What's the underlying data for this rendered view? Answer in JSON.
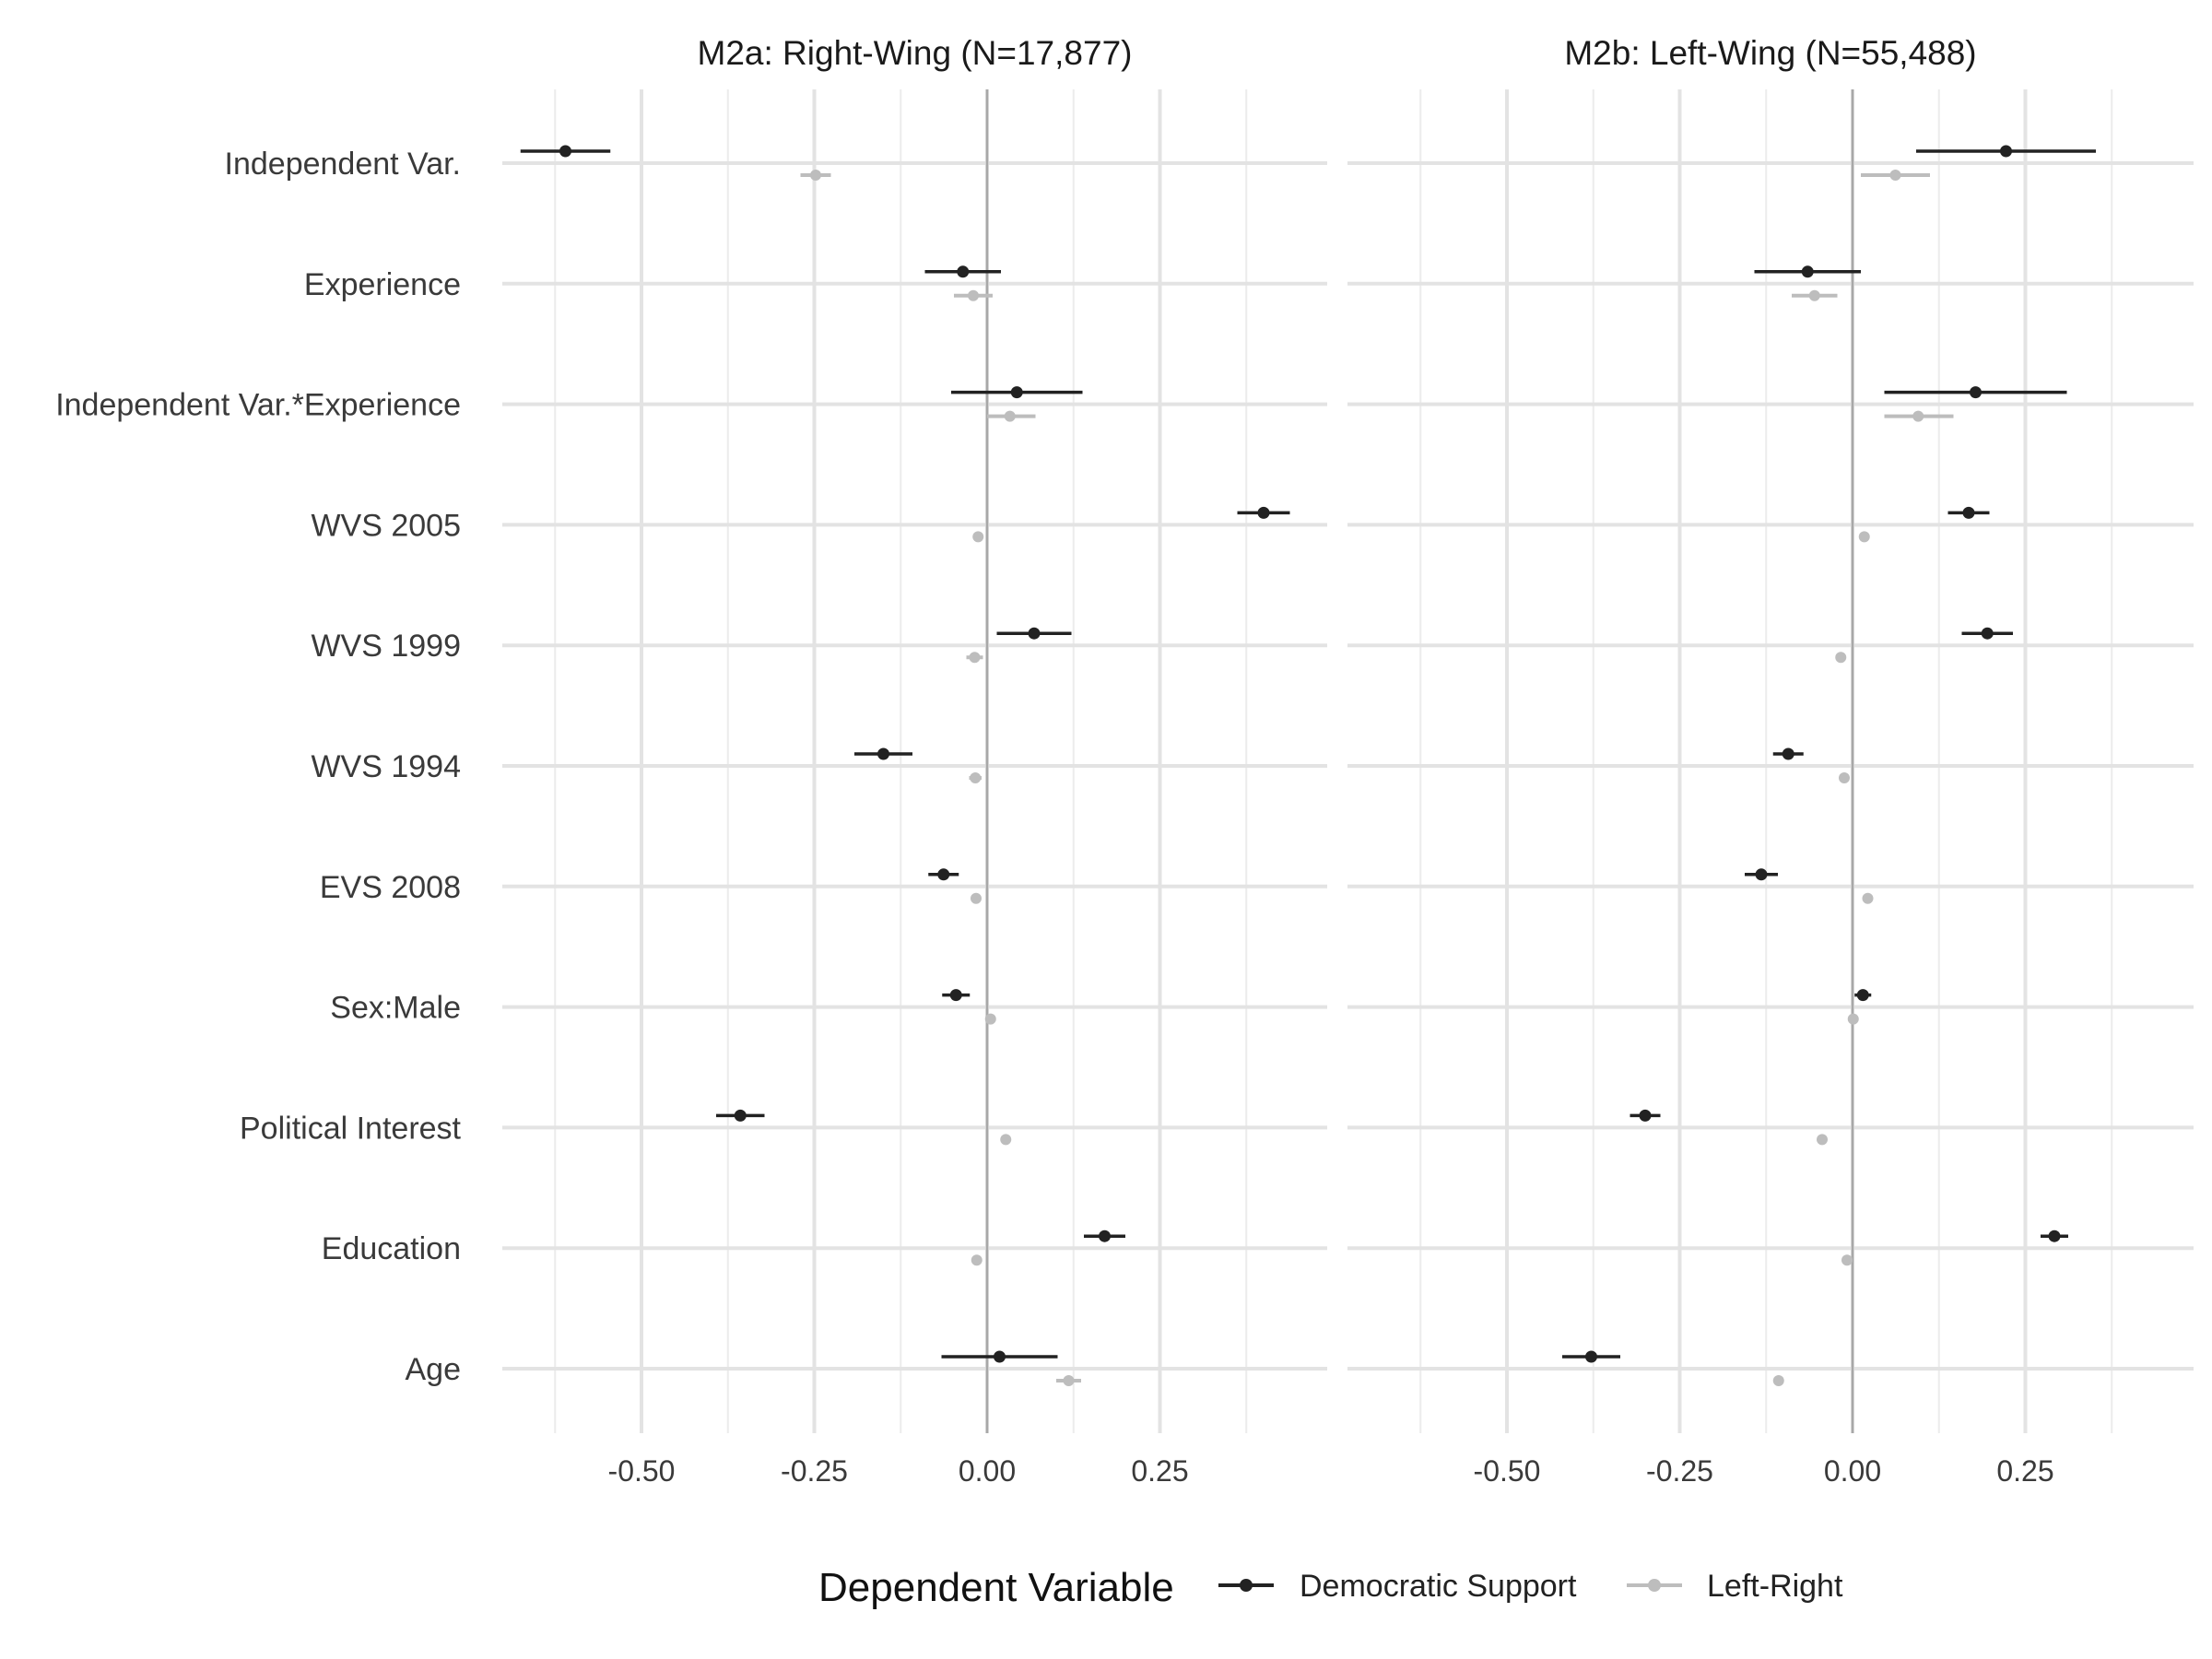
{
  "chart_data": {
    "type": "scatter",
    "subtype": "coefficient-plot",
    "terms": [
      "Independent Var.",
      "Experience",
      "Independent Var.*Experience",
      "WVS 2005",
      "WVS 1999",
      "WVS 1994",
      "EVS 2008",
      "Sex:Male",
      "Political Interest",
      "Education",
      "Age"
    ],
    "x_ticks": [
      -0.5,
      -0.25,
      0.0,
      0.25
    ],
    "x_tick_labels": [
      "-0.50",
      "-0.25",
      "0.00",
      "0.25"
    ],
    "xlim": [
      -0.73,
      0.48
    ],
    "grid": true,
    "reference_line": 0,
    "legend": {
      "title": "Dependent Variable",
      "position": "bottom",
      "entries": [
        {
          "name": "Democratic Support",
          "color": "#222222"
        },
        {
          "name": "Left-Right",
          "color": "#bdbdbd"
        }
      ]
    },
    "panels": [
      {
        "title": "M2a: Right-Wing (N=17,877)",
        "series": [
          {
            "name": "Democratic Support",
            "color": "#222222",
            "estimate": [
              -0.61,
              -0.035,
              0.043,
              0.4,
              0.068,
              -0.15,
              -0.063,
              -0.045,
              -0.357,
              0.17,
              0.018
            ],
            "lower": [
              -0.675,
              -0.09,
              -0.052,
              0.362,
              0.014,
              -0.192,
              -0.085,
              -0.065,
              -0.392,
              0.14,
              -0.066
            ],
            "upper": [
              -0.545,
              0.02,
              0.138,
              0.438,
              0.122,
              -0.108,
              -0.041,
              -0.025,
              -0.322,
              0.2,
              0.102
            ]
          },
          {
            "name": "Left-Right",
            "color": "#bdbdbd",
            "estimate": [
              -0.248,
              -0.02,
              0.033,
              -0.013,
              -0.018,
              -0.017,
              -0.016,
              0.005,
              0.027,
              -0.015,
              0.118
            ],
            "lower": [
              -0.27,
              -0.048,
              0.0,
              -0.02,
              -0.03,
              -0.026,
              -0.022,
              0.0,
              0.02,
              -0.022,
              0.1
            ],
            "upper": [
              -0.226,
              0.008,
              0.07,
              -0.006,
              -0.006,
              -0.008,
              -0.01,
              0.01,
              0.034,
              -0.008,
              0.136
            ]
          }
        ]
      },
      {
        "title": "M2b: Left-Wing (N=55,488)",
        "series": [
          {
            "name": "Democratic Support",
            "color": "#222222",
            "estimate": [
              0.222,
              -0.065,
              0.178,
              0.168,
              0.195,
              -0.093,
              -0.132,
              0.015,
              -0.3,
              0.292,
              -0.378
            ],
            "lower": [
              0.092,
              -0.142,
              0.046,
              0.138,
              0.158,
              -0.115,
              -0.156,
              0.003,
              -0.322,
              0.272,
              -0.42
            ],
            "upper": [
              0.352,
              0.012,
              0.31,
              0.198,
              0.232,
              -0.071,
              -0.108,
              0.027,
              -0.278,
              0.312,
              -0.336
            ]
          },
          {
            "name": "Left-Right",
            "color": "#bdbdbd",
            "estimate": [
              0.062,
              -0.055,
              0.095,
              0.017,
              -0.017,
              -0.012,
              0.022,
              0.001,
              -0.044,
              -0.008,
              -0.107
            ],
            "lower": [
              0.012,
              -0.088,
              0.046,
              0.012,
              -0.022,
              -0.017,
              0.017,
              -0.004,
              -0.05,
              -0.013,
              -0.112
            ],
            "upper": [
              0.112,
              -0.022,
              0.146,
              0.022,
              -0.012,
              -0.007,
              0.027,
              0.006,
              -0.038,
              -0.003,
              -0.102
            ]
          }
        ]
      }
    ]
  }
}
